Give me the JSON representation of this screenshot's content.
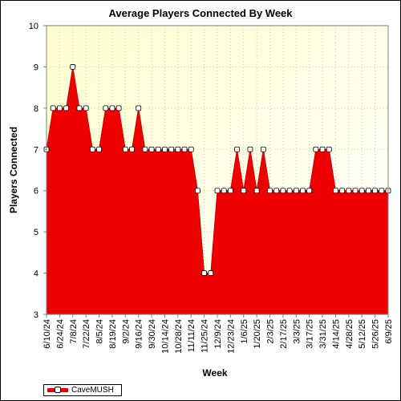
{
  "chart_data": {
    "type": "area",
    "title": "Average Players Connected By Week",
    "xlabel": "Week",
    "ylabel": "Players Connected",
    "ylim": [
      3,
      10
    ],
    "yticks": [
      3,
      4,
      5,
      6,
      7,
      8,
      9,
      10
    ],
    "grid": true,
    "legend_placement": "bottom-left",
    "fill_color": "#ee0000",
    "plot_background": "#ffffe0",
    "x": [
      "6/10/24",
      "6/17/24",
      "6/24/24",
      "7/1/24",
      "7/8/24",
      "7/15/24",
      "7/22/24",
      "7/29/24",
      "8/5/24",
      "8/12/24",
      "8/19/24",
      "8/26/24",
      "9/2/24",
      "9/9/24",
      "9/16/24",
      "9/23/24",
      "9/30/24",
      "10/7/24",
      "10/14/24",
      "10/21/24",
      "10/28/24",
      "11/4/24",
      "11/11/24",
      "11/18/24",
      "11/25/24",
      "12/2/24",
      "12/9/24",
      "12/16/24",
      "12/23/24",
      "12/30/24",
      "1/6/25",
      "1/13/25",
      "1/20/25",
      "1/27/25",
      "2/3/25",
      "2/10/25",
      "2/17/25",
      "2/24/25",
      "3/3/25",
      "3/10/25",
      "3/17/25",
      "3/24/25",
      "3/31/25",
      "4/7/25",
      "4/14/25",
      "4/21/25",
      "4/28/25",
      "5/5/25",
      "5/12/25",
      "5/19/25",
      "5/26/25",
      "6/2/25",
      "6/9/25"
    ],
    "x_tick_labels": [
      "6/10/24",
      "6/24/24",
      "7/8/24",
      "7/22/24",
      "8/5/24",
      "8/19/24",
      "9/2/24",
      "9/16/24",
      "9/30/24",
      "10/14/24",
      "10/28/24",
      "11/11/24",
      "11/25/24",
      "12/9/24",
      "12/23/24",
      "1/6/25",
      "1/20/25",
      "2/3/25",
      "2/17/25",
      "3/3/25",
      "3/17/25",
      "3/31/25",
      "4/14/25",
      "4/28/25",
      "5/12/25",
      "5/26/25",
      "6/9/25"
    ],
    "series": [
      {
        "name": "CaveMUSH",
        "values": [
          7,
          8,
          8,
          8,
          9,
          8,
          8,
          7,
          7,
          8,
          8,
          8,
          7,
          7,
          8,
          7,
          7,
          7,
          7,
          7,
          7,
          7,
          7,
          6,
          4,
          4,
          6,
          6,
          6,
          7,
          6,
          7,
          6,
          7,
          6,
          6,
          6,
          6,
          6,
          6,
          6,
          7,
          7,
          7,
          6,
          6,
          6,
          6,
          6,
          6,
          6,
          6,
          6
        ]
      }
    ]
  }
}
